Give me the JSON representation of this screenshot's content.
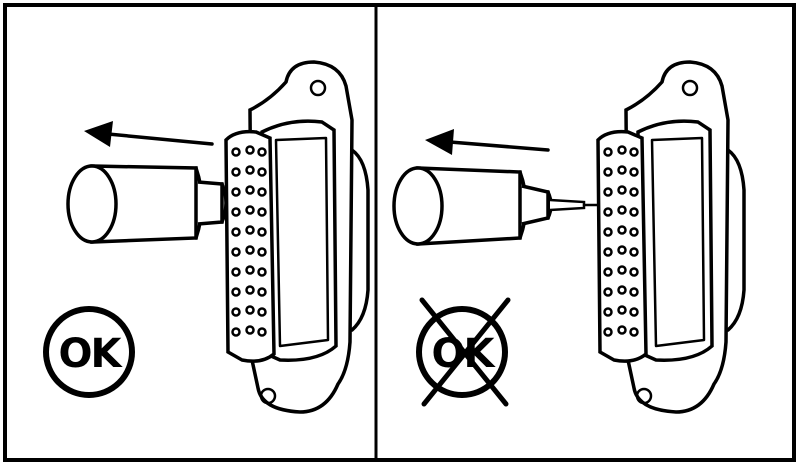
{
  "panels": [
    {
      "id": "left",
      "badge": "OK",
      "crossed": false
    },
    {
      "id": "right",
      "badge": "OK",
      "crossed": true
    }
  ]
}
